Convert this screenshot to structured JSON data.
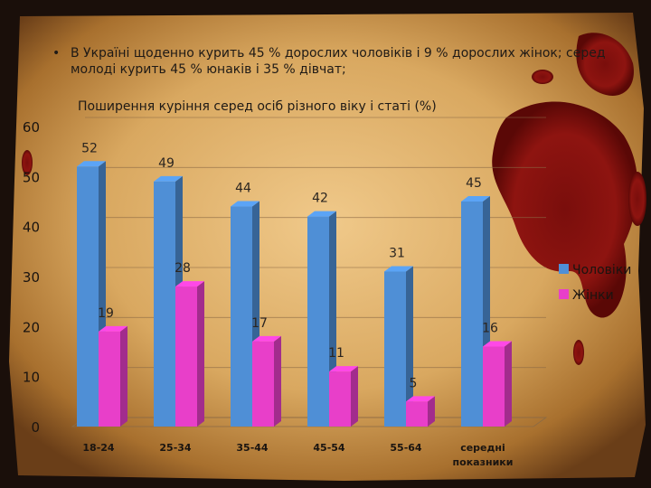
{
  "bullet": {
    "marker": "•",
    "text": "В Україні щоденно курить 45 % дорослих чоловіків і 9 % дорослих жінок; серед молоді курить 45 % юнаків і 35 % дівчат;"
  },
  "colors": {
    "men": "#4f8fd6",
    "women": "#e83fc9",
    "parchment": "#d9a860",
    "blood": "#8e1410"
  },
  "chart_data": {
    "type": "bar",
    "title": "Поширення куріння серед осіб різного віку і статі (%)",
    "categories": [
      "18-24",
      "25-34",
      "35-44",
      "45-54",
      "55-64",
      "середні показники"
    ],
    "series": [
      {
        "name": "Чоловіки",
        "values": [
          52,
          49,
          44,
          42,
          31,
          45
        ]
      },
      {
        "name": "Жінки",
        "values": [
          19,
          28,
          17,
          11,
          5,
          16
        ]
      }
    ],
    "xlabel": "",
    "ylabel": "",
    "ylim": [
      0,
      60
    ],
    "yticks": [
      0,
      10,
      20,
      30,
      40,
      50,
      60
    ],
    "grid": true,
    "legend": "right"
  }
}
